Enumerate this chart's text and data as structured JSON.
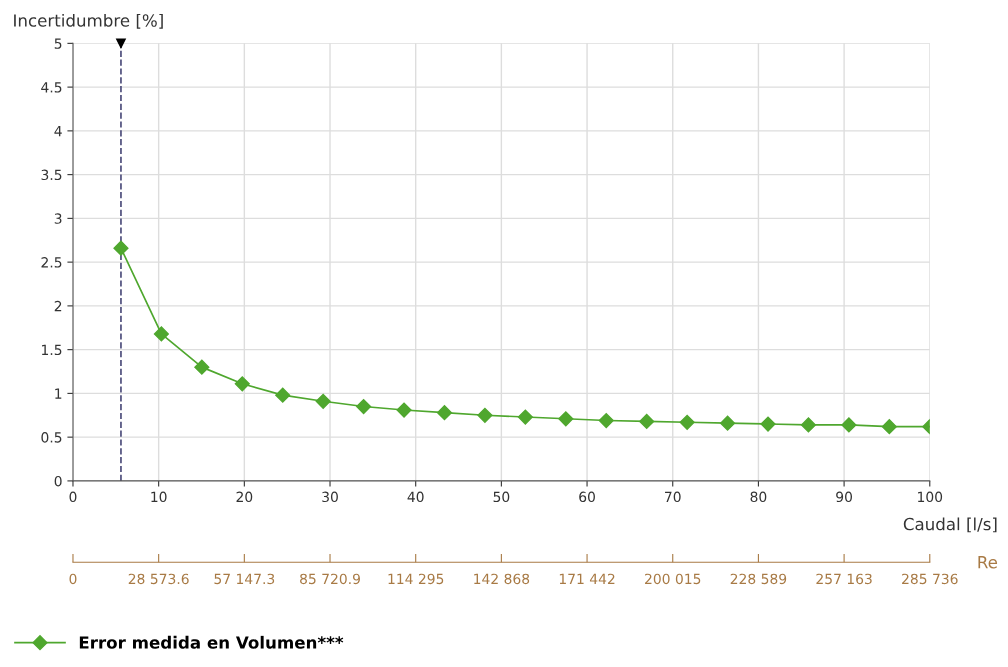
{
  "chart_data": {
    "type": "line",
    "xlabel": "Caudal [l/s]",
    "ylabel": "Incertidumbre [%]",
    "x2label": "Re",
    "x": [
      5.6,
      10.32,
      15.04,
      19.76,
      24.48,
      29.2,
      33.92,
      38.64,
      43.36,
      48.08,
      52.8,
      57.52,
      62.24,
      66.96,
      71.68,
      76.4,
      81.12,
      85.84,
      90.56,
      95.28,
      100
    ],
    "series": [
      {
        "name": "Error medida en Volumen***",
        "color": "#4fa72e",
        "values": [
          2.66,
          1.68,
          1.3,
          1.11,
          0.98,
          0.91,
          0.85,
          0.81,
          0.78,
          0.75,
          0.73,
          0.71,
          0.69,
          0.68,
          0.67,
          0.66,
          0.65,
          0.64,
          0.64,
          0.62,
          0.62
        ]
      }
    ],
    "xlim": [
      0,
      100
    ],
    "xticks": [
      0,
      10,
      20,
      30,
      40,
      50,
      60,
      70,
      80,
      90,
      100
    ],
    "ylim": [
      0,
      5
    ],
    "yticks": [
      0,
      0.5,
      1,
      1.5,
      2,
      2.5,
      3,
      3.5,
      4,
      4.5,
      5
    ],
    "x2lim": [
      0,
      285736
    ],
    "x2ticks": [
      0,
      {
        "value": 28573.6,
        "label": "28 573.6"
      },
      {
        "value": 57147.3,
        "label": "57 147.3"
      },
      {
        "value": 85720.9,
        "label": "85 720.9"
      },
      {
        "value": 114295,
        "label": "114 295"
      },
      {
        "value": 142868,
        "label": "142 868"
      },
      {
        "value": 171442,
        "label": "171 442"
      },
      {
        "value": 200015,
        "label": "200 015"
      },
      {
        "value": 228589,
        "label": "228 589"
      },
      {
        "value": 257163,
        "label": "257 163"
      },
      {
        "value": 285736,
        "label": "285 736"
      }
    ],
    "ref_lines": [
      {
        "axis": "x",
        "value": 5.6,
        "color": "#4b4b7a",
        "line_style": "dashed"
      }
    ],
    "grid": true,
    "legend": "bottom left",
    "marker": "diamond",
    "line_style": "solid"
  }
}
